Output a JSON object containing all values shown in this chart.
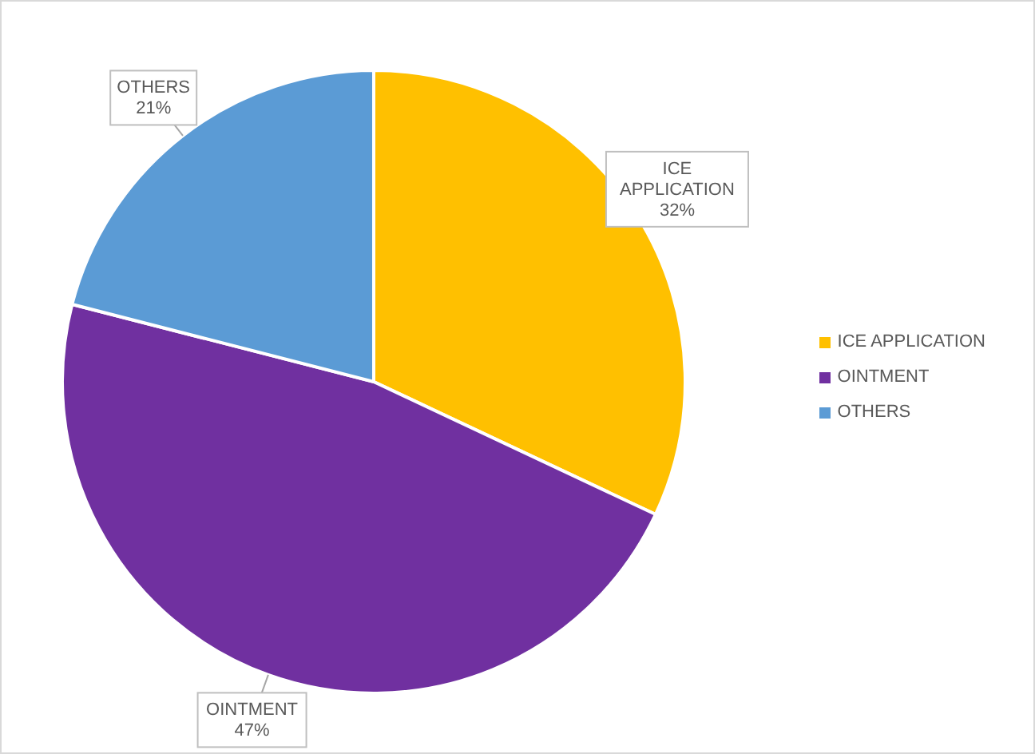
{
  "chart_data": {
    "type": "pie",
    "categories": [
      "ICE APPLICATION",
      "OINTMENT",
      "OTHERS"
    ],
    "values": [
      32,
      47,
      21
    ],
    "colors": [
      "#ffc000",
      "#7030a0",
      "#5b9bd5"
    ],
    "value_labels": [
      "32%",
      "47%",
      "21%"
    ],
    "legend": "right"
  }
}
